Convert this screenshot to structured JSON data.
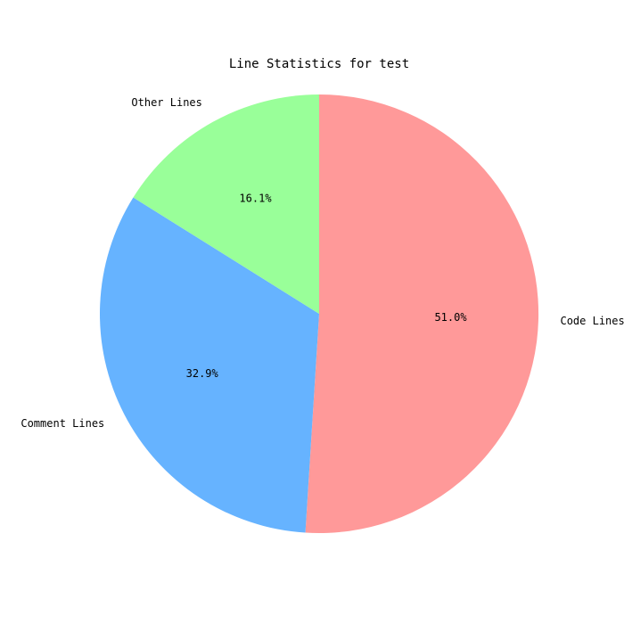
{
  "chart_data": {
    "type": "pie",
    "title": "Line Statistics for test",
    "start_angle_deg": 90,
    "direction": "clockwise",
    "slices": [
      {
        "label": "Code Lines",
        "value": 51.0,
        "pct_label": "51.0%",
        "color": "#ff9999"
      },
      {
        "label": "Comment Lines",
        "value": 32.9,
        "pct_label": "32.9%",
        "color": "#66b3ff"
      },
      {
        "label": "Other Lines",
        "value": 16.1,
        "pct_label": "16.1%",
        "color": "#99ff99"
      }
    ]
  }
}
